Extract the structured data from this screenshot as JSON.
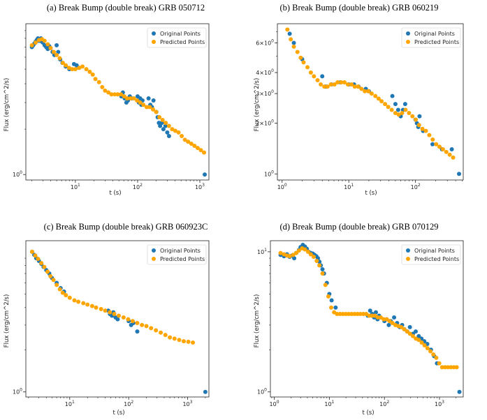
{
  "legend": {
    "original": "Original Points",
    "predicted": "Predicted Points"
  },
  "colors": {
    "original": "#1f77b4",
    "predicted": "#ffa500"
  },
  "chart_data": [
    {
      "type": "scatter",
      "title": "(a) Break Bump (double break) GRB 050712",
      "xlabel": "t (s)",
      "ylabel": "Flux (erg/cm^2/s)",
      "xscale": "log",
      "yscale": "log",
      "xlim": [
        1.6,
        1400
      ],
      "ylim": [
        0.92,
        10
      ],
      "xticks": [
        {
          "v": 10,
          "b": "10",
          "e": "1"
        },
        {
          "v": 100,
          "b": "10",
          "e": "2"
        },
        {
          "v": 1000,
          "b": "10",
          "e": "3"
        }
      ],
      "yticks": [
        {
          "v": 1,
          "b": "10",
          "e": "0"
        }
      ],
      "legend_position": "top-right",
      "series": [
        {
          "name": "Original Points",
          "x": [
            2.0,
            2.1,
            2.2,
            2.3,
            2.4,
            2.5,
            2.6,
            2.7,
            2.8,
            2.9,
            3.0,
            3.2,
            3.4,
            3.6,
            3.8,
            4.0,
            4.3,
            4.6,
            5.0,
            5.3,
            5.7,
            6.2,
            7.0,
            8.0,
            9.5,
            10.5,
            11.5,
            55,
            58,
            62,
            66,
            70,
            75,
            80,
            100,
            105,
            110,
            115,
            120,
            150,
            160,
            170,
            180,
            200,
            210,
            220,
            230,
            245,
            260,
            280,
            300,
            320,
            1200
          ],
          "y": [
            7.0,
            7.2,
            7.4,
            7.6,
            7.8,
            8.0,
            7.7,
            7.9,
            8.0,
            7.6,
            7.5,
            7.2,
            7.0,
            6.8,
            7.1,
            6.9,
            6.5,
            6.2,
            7.2,
            6.5,
            5.8,
            5.5,
            5.2,
            5.0,
            5.4,
            5.3,
            5.1,
            3.3,
            3.5,
            3.2,
            3.0,
            3.1,
            3.3,
            3.2,
            3.3,
            3.0,
            3.2,
            2.9,
            3.1,
            3.2,
            2.9,
            2.8,
            3.1,
            2.6,
            2.4,
            2.2,
            2.1,
            2.2,
            2.0,
            2.1,
            1.9,
            1.8,
            1.0
          ]
        },
        {
          "name": "Predicted Points",
          "x": [
            2.0,
            2.3,
            2.6,
            2.9,
            3.2,
            3.6,
            4.0,
            4.5,
            5.0,
            5.6,
            6.3,
            7.0,
            7.9,
            8.9,
            10,
            11.5,
            13,
            15,
            17,
            19,
            21,
            24,
            27,
            30,
            34,
            38,
            43,
            48,
            54,
            61,
            68,
            77,
            87,
            98,
            110,
            124,
            140,
            157,
            177,
            199,
            224,
            252,
            283,
            319,
            359,
            404,
            455,
            512,
            576,
            648,
            730,
            821,
            924,
            1040,
            1170
          ],
          "y": [
            7.2,
            7.5,
            7.8,
            7.9,
            7.7,
            7.3,
            6.9,
            6.5,
            6.2,
            5.9,
            5.5,
            5.3,
            5.1,
            5.0,
            5.0,
            5.1,
            5.2,
            5.0,
            4.8,
            4.6,
            4.3,
            4.1,
            3.8,
            3.6,
            3.5,
            3.4,
            3.4,
            3.4,
            3.4,
            3.3,
            3.2,
            3.2,
            3.2,
            3.1,
            3.0,
            2.9,
            2.8,
            2.8,
            2.7,
            2.6,
            2.4,
            2.3,
            2.2,
            2.1,
            2.0,
            1.95,
            1.9,
            1.8,
            1.7,
            1.65,
            1.6,
            1.55,
            1.5,
            1.45,
            1.4
          ]
        }
      ]
    },
    {
      "type": "scatter",
      "title": "(b) Break Bump (double break) GRB 060219",
      "xlabel": "t (s)",
      "ylabel": "Flux (erg/cm^2/s)",
      "xscale": "log",
      "yscale": "log",
      "xlim": [
        0.85,
        520
      ],
      "ylim": [
        0.92,
        7.8
      ],
      "xticks": [
        {
          "v": 1,
          "b": "10",
          "e": "0"
        },
        {
          "v": 10,
          "b": "10",
          "e": "1"
        },
        {
          "v": 100,
          "b": "10",
          "e": "2"
        }
      ],
      "yticks": [
        {
          "v": 1,
          "b": "10",
          "e": "0"
        },
        {
          "v": 2,
          "b": "2×10",
          "e": "0"
        },
        {
          "v": 3,
          "b": "3×10",
          "e": "0"
        },
        {
          "v": 4,
          "b": "4×10",
          "e": "0"
        },
        {
          "v": 6,
          "b": "6×10",
          "e": "0"
        }
      ],
      "legend_position": "top-right",
      "series": [
        {
          "name": "Original Points",
          "x": [
            1.3,
            1.5,
            2.0,
            4.0,
            4.5,
            5.5,
            7.5,
            10,
            12,
            14,
            18,
            20,
            45,
            50,
            55,
            60,
            65,
            70,
            100,
            105,
            110,
            115,
            130,
            180,
            250,
            350,
            450
          ],
          "y": [
            6.8,
            6.0,
            4.8,
            3.8,
            3.3,
            3.4,
            3.5,
            3.4,
            3.4,
            3.3,
            3.2,
            3.1,
            2.9,
            2.6,
            2.4,
            2.2,
            2.4,
            2.6,
            2.1,
            2.0,
            1.9,
            2.2,
            1.8,
            1.5,
            1.4,
            1.4,
            1.0
          ]
        },
        {
          "name": "Predicted Points",
          "x": [
            1.2,
            1.35,
            1.5,
            1.7,
            1.9,
            2.1,
            2.4,
            2.7,
            3.0,
            3.4,
            3.8,
            4.3,
            4.8,
            5.4,
            6.1,
            6.8,
            7.7,
            8.6,
            9.7,
            11,
            12.3,
            13.8,
            15.5,
            17.4,
            19.6,
            22,
            25,
            28,
            31,
            35,
            39,
            44,
            50,
            56,
            63,
            71,
            80,
            90,
            101,
            113,
            127,
            143,
            161,
            181,
            204,
            229,
            258,
            290,
            326,
            367
          ],
          "y": [
            7.2,
            6.3,
            5.7,
            5.3,
            4.9,
            4.6,
            4.3,
            4.0,
            3.8,
            3.6,
            3.4,
            3.3,
            3.3,
            3.4,
            3.4,
            3.5,
            3.5,
            3.5,
            3.4,
            3.4,
            3.3,
            3.3,
            3.2,
            3.1,
            3.1,
            3.0,
            2.9,
            2.8,
            2.7,
            2.6,
            2.5,
            2.4,
            2.3,
            2.25,
            2.3,
            2.4,
            2.3,
            2.2,
            2.1,
            1.95,
            1.85,
            1.8,
            1.7,
            1.6,
            1.5,
            1.45,
            1.4,
            1.35,
            1.3,
            1.25
          ]
        }
      ]
    },
    {
      "type": "scatter",
      "title": "(c) Break Bump (double break) GRB 060923C",
      "xlabel": "t (s)",
      "ylabel": "Flux (erg/cm^2/s)",
      "xscale": "log",
      "yscale": "log",
      "xlim": [
        1.8,
        2300
      ],
      "ylim": [
        0.92,
        12
      ],
      "xticks": [
        {
          "v": 10,
          "b": "10",
          "e": "1"
        },
        {
          "v": 100,
          "b": "10",
          "e": "2"
        },
        {
          "v": 1000,
          "b": "10",
          "e": "3"
        }
      ],
      "yticks": [
        {
          "v": 1,
          "b": "10",
          "e": "0"
        }
      ],
      "legend_position": "top-right",
      "series": [
        {
          "name": "Original Points",
          "x": [
            2.3,
            2.5,
            2.7,
            3.0,
            3.3,
            3.6,
            4.0,
            4.5,
            5.0,
            6.0,
            7.0,
            8.0,
            45,
            48,
            52,
            55,
            60,
            65,
            100,
            110,
            120,
            140,
            2000
          ],
          "y": [
            10.0,
            9.5,
            9.0,
            8.6,
            8.2,
            7.8,
            7.4,
            7.0,
            6.5,
            6.0,
            5.5,
            5.2,
            3.8,
            3.6,
            3.5,
            3.7,
            3.4,
            3.3,
            3.2,
            3.0,
            3.1,
            2.7,
            1.0
          ]
        },
        {
          "name": "Predicted Points",
          "x": [
            2.3,
            2.6,
            2.9,
            3.3,
            3.7,
            4.2,
            4.7,
            5.3,
            6.0,
            6.8,
            7.6,
            8.6,
            10,
            12,
            14,
            17,
            20,
            24,
            28,
            34,
            40,
            48,
            57,
            68,
            82,
            98,
            117,
            140,
            168,
            200,
            240,
            290,
            350,
            420,
            500,
            600,
            720,
            860,
            1030,
            1230
          ],
          "y": [
            10.0,
            9.4,
            8.9,
            8.3,
            7.8,
            7.2,
            6.7,
            6.3,
            5.8,
            5.4,
            5.1,
            4.9,
            4.7,
            4.5,
            4.4,
            4.3,
            4.2,
            4.1,
            4.0,
            3.9,
            3.8,
            3.7,
            3.6,
            3.5,
            3.4,
            3.3,
            3.2,
            3.1,
            3.0,
            2.95,
            2.85,
            2.75,
            2.65,
            2.55,
            2.45,
            2.4,
            2.35,
            2.3,
            2.28,
            2.25
          ]
        }
      ]
    },
    {
      "type": "scatter",
      "title": "(d) Break Bump (double break) GRB 070129",
      "xlabel": "t (s)",
      "ylabel": "Flux (erg/cm^2/s)",
      "xscale": "log",
      "yscale": "log",
      "xlim": [
        0.85,
        2700
      ],
      "ylim": [
        0.92,
        12
      ],
      "xticks": [
        {
          "v": 1,
          "b": "10",
          "e": "0"
        },
        {
          "v": 10,
          "b": "10",
          "e": "1"
        },
        {
          "v": 100,
          "b": "10",
          "e": "2"
        },
        {
          "v": 1000,
          "b": "10",
          "e": "3"
        }
      ],
      "yticks": [
        {
          "v": 1,
          "b": "10",
          "e": "0"
        },
        {
          "v": 10,
          "b": "10",
          "e": "1"
        }
      ],
      "legend_position": "top-right",
      "series": [
        {
          "name": "Original Points",
          "x": [
            1.3,
            1.5,
            1.7,
            1.9,
            2.1,
            2.3,
            2.5,
            2.8,
            3.0,
            3.3,
            3.6,
            3.9,
            4.2,
            4.6,
            5.0,
            5.4,
            5.8,
            6.2,
            6.6,
            7.0,
            7.5,
            8.0,
            9.0,
            10,
            11,
            13,
            50,
            55,
            60,
            65,
            70,
            75,
            80,
            100,
            110,
            120,
            130,
            150,
            170,
            190,
            210,
            230,
            260,
            290,
            330,
            370,
            420,
            470,
            530,
            600,
            700,
            800,
            900,
            2300
          ],
          "y": [
            9.5,
            9.3,
            9.6,
            9.2,
            9.4,
            9.0,
            9.8,
            10.3,
            10.8,
            11.2,
            10.9,
            10.5,
            10.0,
            9.8,
            9.7,
            9.5,
            9.3,
            9.0,
            8.5,
            8.0,
            7.5,
            7.0,
            6.0,
            5.0,
            4.5,
            4.0,
            3.5,
            3.8,
            3.6,
            3.4,
            3.7,
            3.3,
            3.5,
            3.2,
            3.3,
            3.0,
            3.2,
            3.4,
            3.1,
            2.9,
            3.0,
            2.8,
            2.7,
            2.9,
            2.6,
            2.7,
            2.5,
            2.4,
            2.3,
            2.2,
            2.0,
            1.8,
            1.6,
            1.0
          ]
        },
        {
          "name": "Predicted Points",
          "x": [
            1.3,
            1.5,
            1.7,
            1.9,
            2.2,
            2.5,
            2.8,
            3.2,
            3.6,
            4.1,
            4.6,
            5.2,
            5.9,
            6.6,
            7.5,
            8.5,
            9.6,
            10.8,
            12.2,
            13.8,
            15.6,
            17.6,
            19.9,
            22.5,
            25.4,
            28.7,
            32.4,
            36.6,
            41.4,
            46.7,
            52.8,
            59.6,
            67.4,
            76.1,
            86,
            97,
            110,
            124,
            140,
            158,
            179,
            202,
            228,
            258,
            291,
            329,
            372,
            420,
            475,
            536,
            606,
            685,
            774,
            874,
            988,
            1116,
            1261,
            1425,
            1610,
            1819,
            2055
          ],
          "y": [
            9.8,
            9.6,
            9.4,
            9.3,
            9.5,
            9.8,
            10.2,
            10.6,
            10.4,
            10.0,
            9.6,
            9.2,
            8.6,
            8.0,
            7.0,
            5.8,
            4.8,
            4.0,
            3.7,
            3.6,
            3.6,
            3.6,
            3.6,
            3.6,
            3.6,
            3.6,
            3.6,
            3.6,
            3.6,
            3.6,
            3.5,
            3.5,
            3.5,
            3.4,
            3.4,
            3.3,
            3.3,
            3.2,
            3.1,
            3.0,
            2.95,
            2.9,
            2.8,
            2.7,
            2.6,
            2.5,
            2.4,
            2.35,
            2.25,
            2.15,
            2.05,
            1.95,
            1.85,
            1.75,
            1.6,
            1.5,
            1.5,
            1.5,
            1.5,
            1.5,
            1.5
          ]
        }
      ]
    }
  ]
}
